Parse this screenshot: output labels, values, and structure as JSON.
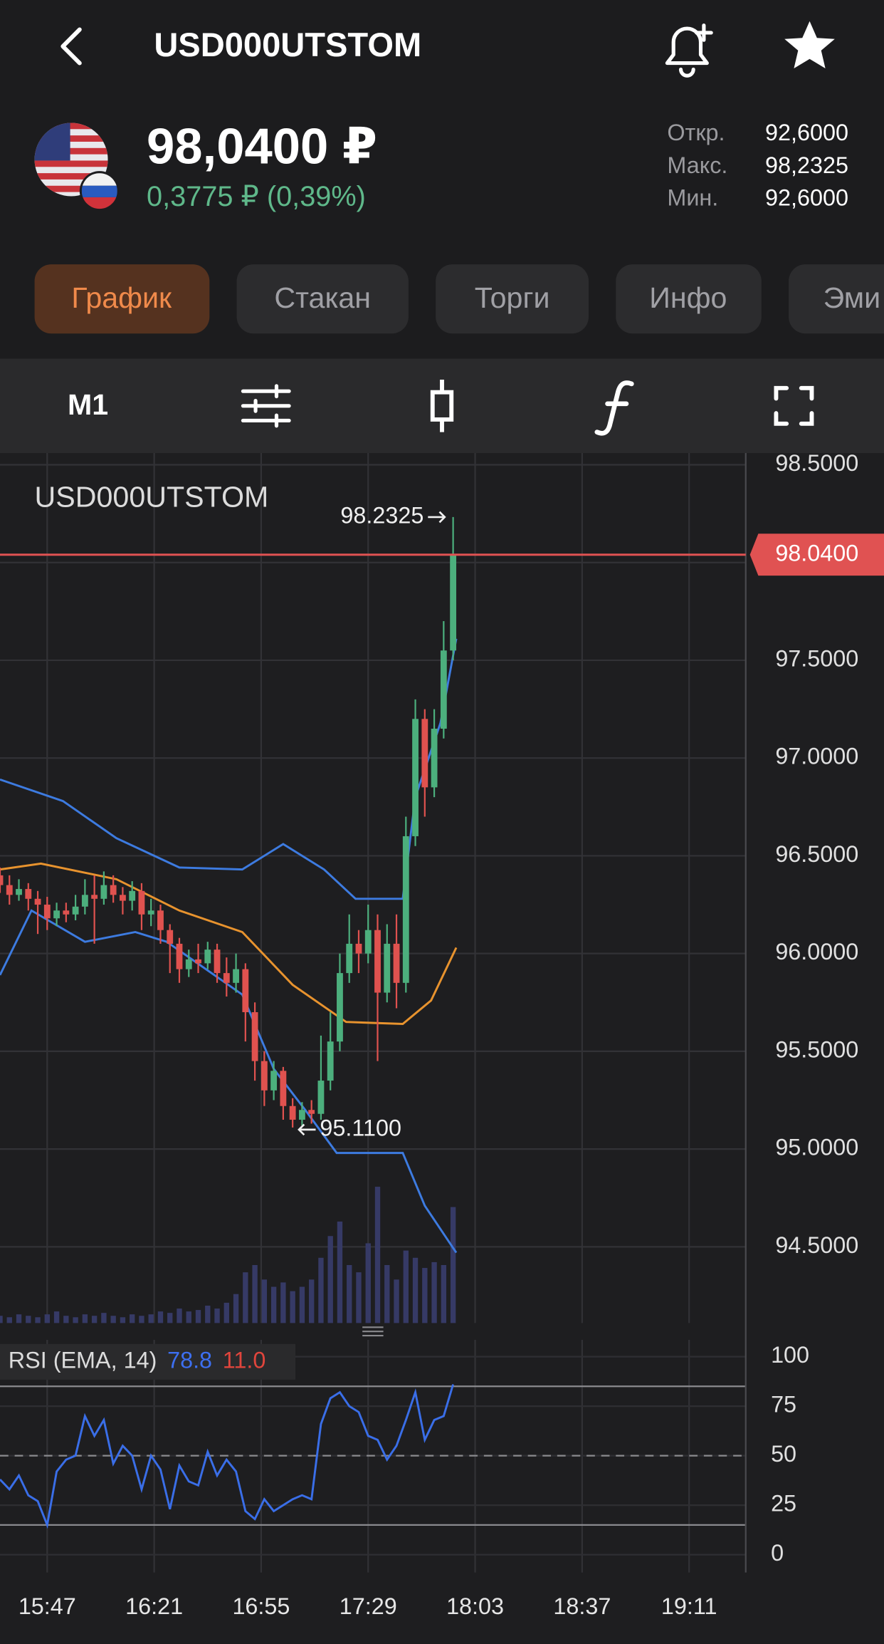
{
  "header": {
    "title": "USD000UTSTOM"
  },
  "quote": {
    "price": "98,0400 ₽",
    "change": "0,3775 ₽ (0,39%)",
    "stats": [
      {
        "label": "Откр.",
        "value": "92,6000"
      },
      {
        "label": "Макс.",
        "value": "98,2325"
      },
      {
        "label": "Мин.",
        "value": "92,6000"
      }
    ]
  },
  "tabs": [
    "График",
    "Стакан",
    "Торги",
    "Инфо",
    "Эми"
  ],
  "toolbar": {
    "timeframe": "M1"
  },
  "chart_data": [
    {
      "type": "candlestick",
      "title": "USD000UTSTOM",
      "x": [
        932,
        935,
        938,
        941,
        944,
        947,
        950,
        953,
        956,
        959,
        962,
        965,
        968,
        971,
        974,
        977,
        980,
        983,
        986,
        989,
        992,
        995,
        998,
        1001,
        1004,
        1007,
        1010,
        1013,
        1016,
        1019,
        1022,
        1025,
        1028,
        1031,
        1034,
        1037,
        1040,
        1043,
        1046,
        1049,
        1052,
        1055,
        1058,
        1061,
        1064,
        1067,
        1070,
        1073,
        1076
      ],
      "open": [
        96.4,
        96.35,
        96.3,
        96.33,
        96.28,
        96.25,
        96.18,
        96.22,
        96.2,
        96.24,
        96.3,
        96.28,
        96.35,
        96.3,
        96.27,
        96.32,
        96.2,
        96.22,
        96.12,
        96.05,
        95.92,
        95.97,
        95.95,
        96.02,
        95.9,
        95.85,
        95.92,
        95.7,
        95.45,
        95.3,
        95.4,
        95.22,
        95.15,
        95.2,
        95.18,
        95.35,
        95.55,
        95.9,
        96.05,
        96.0,
        96.12,
        95.8,
        96.05,
        95.85,
        96.6,
        97.2,
        96.85,
        97.15,
        97.55
      ],
      "high": [
        96.44,
        96.4,
        96.38,
        96.36,
        96.32,
        96.29,
        96.26,
        96.26,
        96.3,
        96.38,
        96.4,
        96.42,
        96.4,
        96.34,
        96.37,
        96.36,
        96.28,
        96.25,
        96.15,
        96.08,
        96.02,
        96.05,
        96.06,
        96.05,
        95.98,
        96.0,
        95.95,
        95.75,
        95.5,
        95.45,
        95.42,
        95.26,
        95.24,
        95.25,
        95.58,
        95.7,
        96.0,
        96.2,
        96.12,
        96.25,
        96.2,
        96.15,
        96.2,
        96.7,
        97.3,
        97.25,
        97.25,
        97.7,
        98.2325
      ],
      "low": [
        96.31,
        96.25,
        96.27,
        96.22,
        96.1,
        96.12,
        96.14,
        96.16,
        96.17,
        96.2,
        96.05,
        96.25,
        96.26,
        96.2,
        96.22,
        96.12,
        96.14,
        96.05,
        95.9,
        95.85,
        95.88,
        95.9,
        95.92,
        95.85,
        95.78,
        95.8,
        95.55,
        95.35,
        95.22,
        95.25,
        95.15,
        95.11,
        95.12,
        95.13,
        95.15,
        95.3,
        95.5,
        95.85,
        95.9,
        95.95,
        95.45,
        95.75,
        95.72,
        95.8,
        96.55,
        96.7,
        96.8,
        97.1,
        97.5
      ],
      "close": [
        96.35,
        96.3,
        96.33,
        96.28,
        96.25,
        96.18,
        96.22,
        96.2,
        96.24,
        96.3,
        96.28,
        96.35,
        96.3,
        96.27,
        96.32,
        96.2,
        96.22,
        96.12,
        96.05,
        95.92,
        95.97,
        95.95,
        96.02,
        95.9,
        95.85,
        95.92,
        95.7,
        95.45,
        95.3,
        95.4,
        95.22,
        95.15,
        95.2,
        95.18,
        95.35,
        95.55,
        95.9,
        96.05,
        96.0,
        96.12,
        95.8,
        96.05,
        95.85,
        96.6,
        97.2,
        96.85,
        97.15,
        97.55,
        98.04
      ],
      "up_color": "#4caf7d",
      "down_color": "#e0524f",
      "volume": [
        5,
        4,
        6,
        5,
        4,
        6,
        8,
        5,
        4,
        6,
        5,
        7,
        5,
        4,
        6,
        5,
        6,
        8,
        7,
        10,
        8,
        9,
        12,
        10,
        14,
        20,
        35,
        40,
        30,
        25,
        28,
        22,
        25,
        30,
        45,
        60,
        70,
        40,
        35,
        55,
        94,
        40,
        30,
        50,
        45,
        38,
        42,
        40,
        80
      ],
      "volume_color": "#363a66",
      "volume_lim": [
        0,
        600
      ],
      "overlays": [
        {
          "color": "#3d7be0",
          "x": [
            932,
            952,
            969,
            989,
            1009,
            1022,
            1035,
            1045,
            1060,
            1064,
            1072,
            1077
          ],
          "values": [
            96.89,
            96.78,
            96.59,
            96.44,
            96.43,
            96.56,
            96.43,
            96.28,
            96.28,
            96.8,
            97.18,
            97.61
          ]
        },
        {
          "color": "#e8932e",
          "x": [
            932,
            945,
            969,
            989,
            1009,
            1025,
            1042,
            1060,
            1069,
            1077
          ],
          "values": [
            96.43,
            96.46,
            96.38,
            96.22,
            96.11,
            95.84,
            95.65,
            95.64,
            95.76,
            96.03
          ]
        },
        {
          "color": "#3d7be0",
          "x": [
            932,
            942,
            959,
            975,
            985,
            1009,
            1019,
            1029,
            1039,
            1060,
            1067,
            1077
          ],
          "values": [
            95.89,
            96.22,
            96.06,
            96.11,
            96.06,
            95.79,
            95.41,
            95.2,
            94.98,
            94.98,
            94.71,
            94.47
          ]
        }
      ],
      "ylim": [
        94.11,
        98.56
      ],
      "yticks": [
        {
          "value": 94.5,
          "label": "94.5000"
        },
        {
          "value": 95,
          "label": "95.0000"
        },
        {
          "value": 95.5,
          "label": "95.5000"
        },
        {
          "value": 96,
          "label": "96.0000"
        },
        {
          "value": 96.5,
          "label": "96.5000"
        },
        {
          "value": 97,
          "label": "97.0000"
        },
        {
          "value": 97.5,
          "label": "97.5000"
        },
        {
          "value": 98,
          "label": "98.0000"
        },
        {
          "value": 98.5,
          "label": "98.5000"
        }
      ],
      "xlim": [
        932,
        1169
      ],
      "xticks": [
        {
          "value": 947,
          "label": "15:47"
        },
        {
          "value": 981,
          "label": "16:21"
        },
        {
          "value": 1015,
          "label": "16:55"
        },
        {
          "value": 1049,
          "label": "17:29"
        },
        {
          "value": 1083,
          "label": "18:03"
        },
        {
          "value": 1117,
          "label": "18:37"
        },
        {
          "value": 1151,
          "label": "19:11"
        }
      ],
      "grid": true,
      "last_price": {
        "value": 98.04,
        "label": "98.0400",
        "color": "#e05252"
      },
      "annotations": [
        {
          "x": 1076,
          "value": 98.2325,
          "label": "98.2325"
        },
        {
          "x": 1025,
          "value": 95.11,
          "label": "95.1100"
        }
      ]
    },
    {
      "type": "line",
      "title": "RSI (EMA, 14)",
      "readouts": [
        {
          "value": 78.8,
          "label": "78.8",
          "color": "#3d6ff0"
        },
        {
          "value": 11,
          "label": "11.0",
          "color": "#e0453c"
        }
      ],
      "x": [
        932,
        935,
        938,
        941,
        944,
        947,
        950,
        953,
        956,
        959,
        962,
        965,
        968,
        971,
        974,
        977,
        980,
        983,
        986,
        989,
        992,
        995,
        998,
        1001,
        1004,
        1007,
        1010,
        1013,
        1016,
        1019,
        1022,
        1025,
        1028,
        1031,
        1034,
        1037,
        1040,
        1043,
        1046,
        1049,
        1052,
        1055,
        1058,
        1061,
        1064,
        1067,
        1070,
        1073,
        1076
      ],
      "values": [
        38,
        33,
        40,
        30,
        27,
        15,
        42,
        48,
        50,
        70,
        60,
        68,
        46,
        55,
        50,
        33,
        50,
        43,
        23,
        45,
        37,
        35,
        52,
        40,
        48,
        42,
        22,
        18,
        28,
        22,
        25,
        28,
        30,
        28,
        66,
        79,
        82,
        75,
        72,
        60,
        58,
        48,
        55,
        68,
        82,
        58,
        68,
        70,
        86
      ],
      "color": "#3a6ee8",
      "ylim": [
        -9,
        108.5
      ],
      "yticks": [
        0,
        25,
        50,
        75,
        100
      ],
      "levels": [
        85,
        50,
        15
      ]
    }
  ]
}
